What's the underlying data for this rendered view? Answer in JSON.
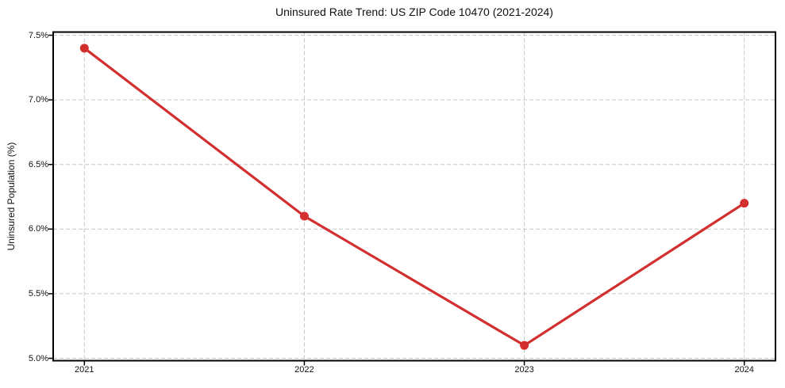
{
  "chart_data": {
    "type": "line",
    "title": "Uninsured Rate Trend: US ZIP Code 10470 (2021-2024)",
    "xlabel": "",
    "ylabel": "Uninsured Population (%)",
    "categories": [
      "2021",
      "2022",
      "2023",
      "2024"
    ],
    "series": [
      {
        "name": "Uninsured Population (%)",
        "values": [
          7.4,
          6.1,
          5.1,
          6.2
        ]
      }
    ],
    "ylim": [
      5.0,
      7.5
    ],
    "yticks": [
      5.0,
      5.5,
      6.0,
      6.5,
      7.0,
      7.5
    ],
    "ytick_labels": [
      "5.0%",
      "5.5%",
      "6.0%",
      "6.5%",
      "7.0%",
      "7.5%"
    ],
    "grid": "dashed",
    "legend": "none",
    "colors": {
      "line": "#d32f2f",
      "marker": "#d32f2f",
      "grid": "#c6c6c6",
      "spine": "#000000",
      "text": "#111111"
    }
  }
}
